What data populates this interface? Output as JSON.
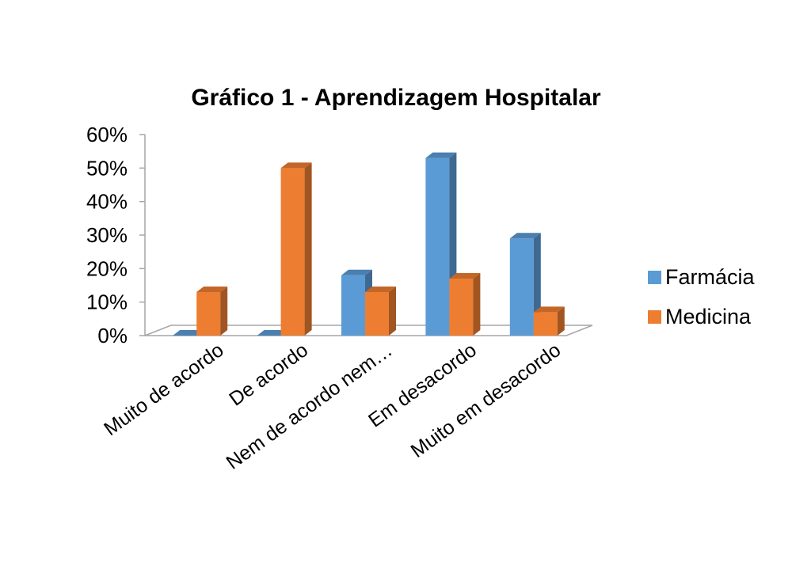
{
  "chart_data": {
    "type": "bar",
    "title": "Gráfico 1 - Aprendizagem Hospitalar",
    "categories": [
      "Muito de acordo",
      "De acordo",
      "Nem de acordo nem…",
      "Em desacordo",
      "Muito em desacordo"
    ],
    "series": [
      {
        "name": "Farmácia",
        "color": "#5B9BD5",
        "values": [
          0,
          0,
          18,
          53,
          29
        ]
      },
      {
        "name": "Medicina",
        "color": "#ED7D31",
        "values": [
          13,
          50,
          13,
          17,
          7
        ]
      }
    ],
    "y_ticks": [
      "0%",
      "10%",
      "20%",
      "30%",
      "40%",
      "50%",
      "60%"
    ],
    "ylim": [
      0,
      60
    ],
    "y_unit": "%",
    "legend_position": "right",
    "grid": false,
    "style": "3d-column"
  }
}
